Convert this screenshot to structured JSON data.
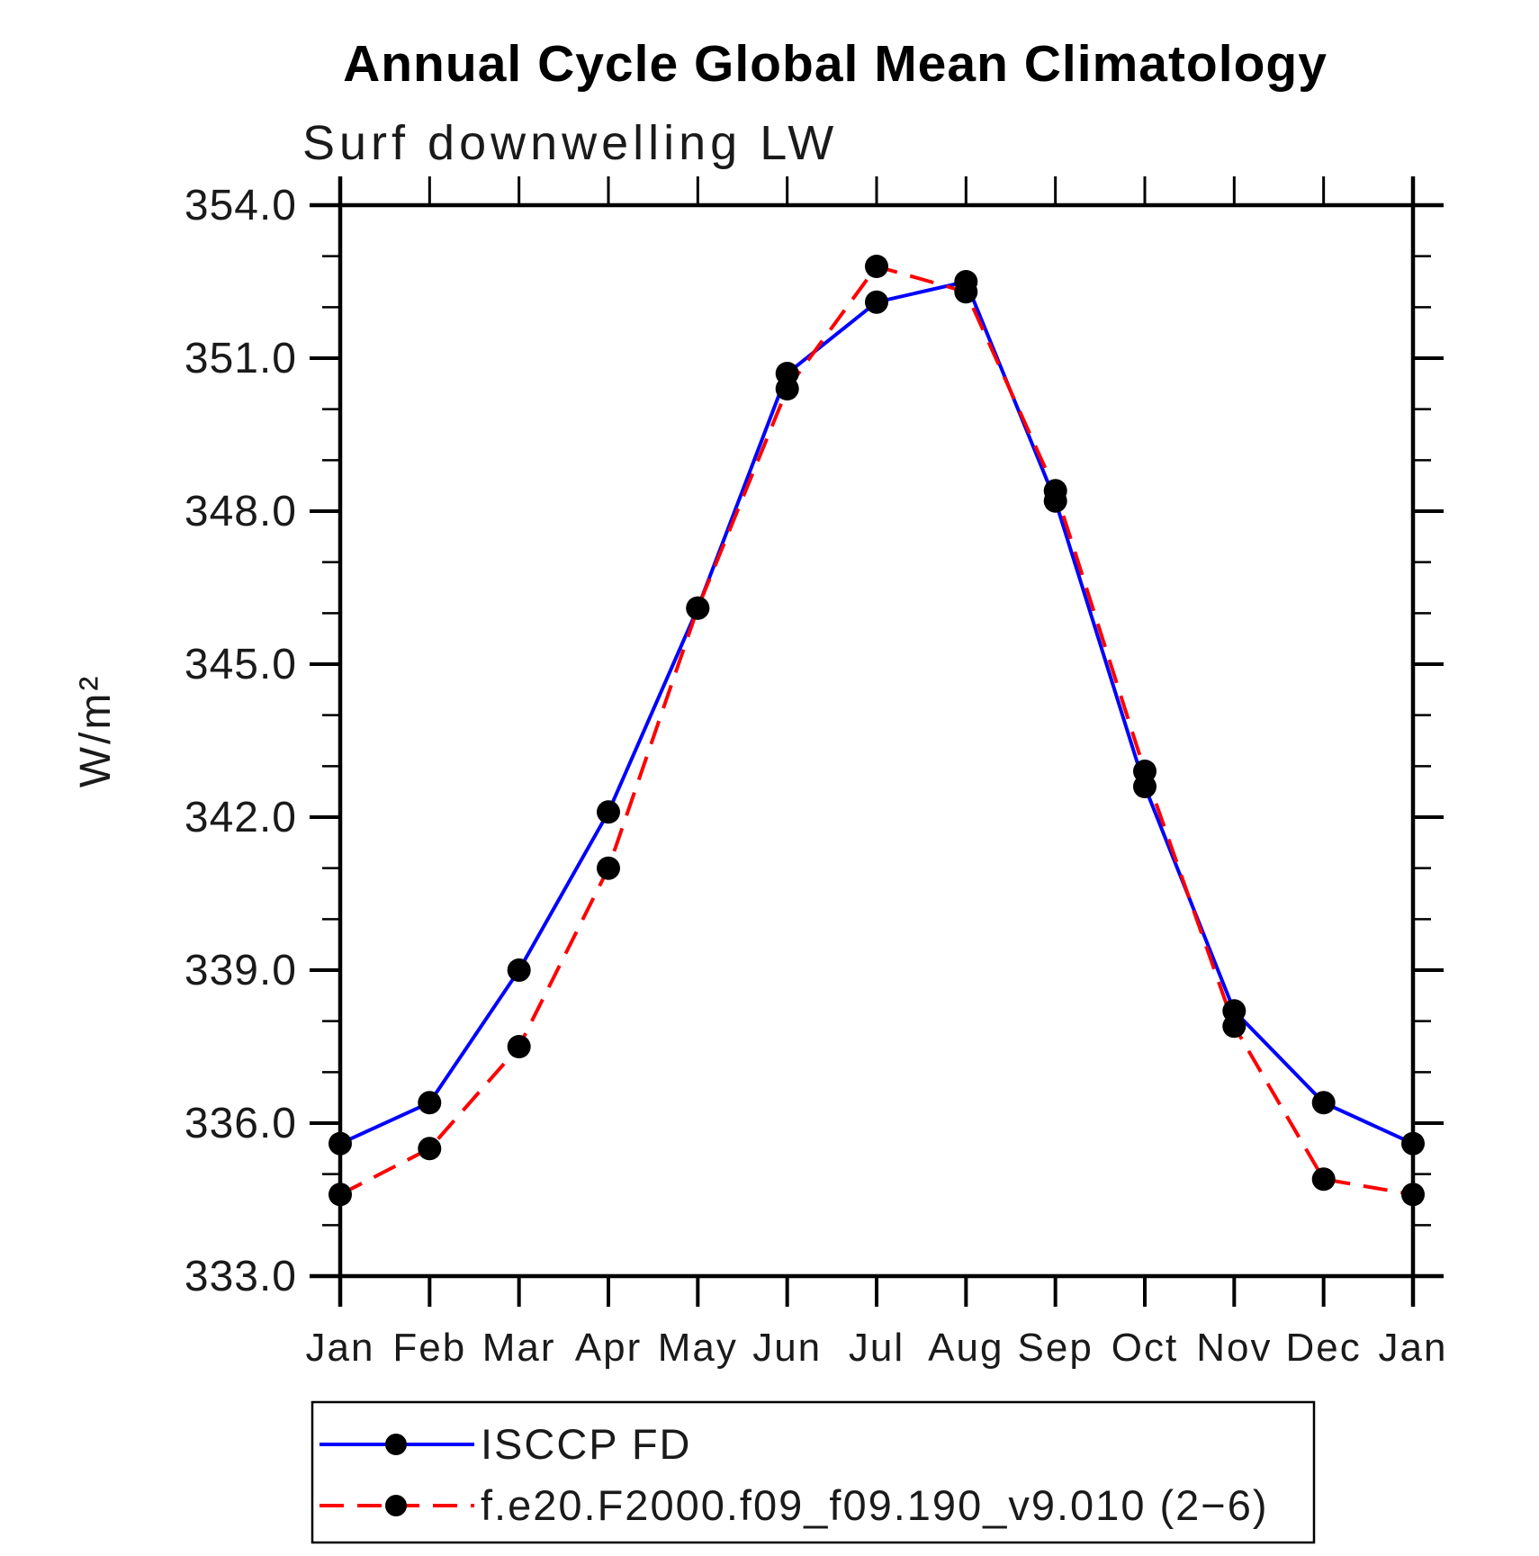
{
  "page": {
    "background": "#ffffff"
  },
  "chart_data": {
    "type": "line",
    "title": "Annual Cycle Global Mean Climatology",
    "subtitle": "Surf downwelling LW",
    "ylabel": "W/m²",
    "xlabel": "",
    "categories": [
      "Jan",
      "Feb",
      "Mar",
      "Apr",
      "May",
      "Jun",
      "Jul",
      "Aug",
      "Sep",
      "Oct",
      "Nov",
      "Dec",
      "Jan"
    ],
    "ylim": [
      333.0,
      354.0
    ],
    "y_tick_labels": [
      "333.0",
      "336.0",
      "339.0",
      "342.0",
      "345.0",
      "348.0",
      "351.0",
      "354.0"
    ],
    "y_major_tick_interval": 3.0,
    "y_minor_tick_interval": 1.0,
    "grid": false,
    "legend_position": "bottom-left",
    "series": [
      {
        "name": "ISCCP FD",
        "color": "#0000ff",
        "line_style": "solid",
        "marker": "filled-circle",
        "marker_color": "#000000",
        "values": [
          335.6,
          336.4,
          339.0,
          342.1,
          346.1,
          350.7,
          352.1,
          352.5,
          348.2,
          342.6,
          338.2,
          336.4,
          335.6
        ]
      },
      {
        "name": "f.e20.F2000.f09_f09.190_v9.010 (2−6)",
        "color": "#ff0000",
        "line_style": "dashed",
        "marker": "filled-circle",
        "marker_color": "#000000",
        "values": [
          334.6,
          335.5,
          337.5,
          341.0,
          346.1,
          350.4,
          352.8,
          352.3,
          348.4,
          342.9,
          337.9,
          334.9,
          334.6
        ]
      }
    ]
  },
  "colors": {
    "axis": "#000000",
    "text": "#1a1a1a",
    "title": "#000000"
  }
}
